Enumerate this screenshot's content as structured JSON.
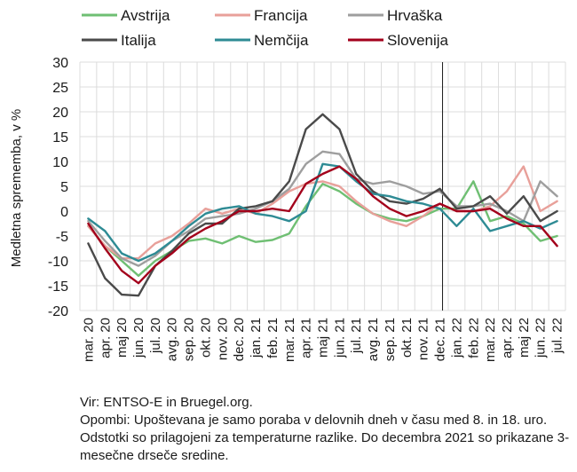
{
  "chart_data": {
    "type": "line",
    "ylabel": "Medletna sprememba, v %",
    "ylim": [
      -20,
      30
    ],
    "yticks": [
      30,
      25,
      20,
      15,
      10,
      5,
      0,
      -5,
      -10,
      -15,
      -20
    ],
    "categories": [
      "mar. 20",
      "apr. 20",
      "maj 20",
      "jun. 20",
      "jul. 20",
      "avg. 20",
      "sep. 20",
      "okt. 20",
      "nov. 20",
      "dec. 20",
      "jan. 21",
      "feb. 21",
      "mar. 21",
      "apr. 21",
      "maj 21",
      "jun. 21",
      "jul. 21",
      "avg. 21",
      "sep. 21",
      "okt. 21",
      "nov. 21",
      "dec. 21",
      "jan. 22",
      "feb. 22",
      "mar. 22",
      "apr. 22",
      "maj 22",
      "jun. 22",
      "jul. 22"
    ],
    "vline_after": "dec. 21",
    "legend_position": "top",
    "series": [
      {
        "name": "Avstrija",
        "color": "#6fbf73",
        "values": [
          -3,
          -7,
          -10,
          -13,
          -10,
          -8,
          -6,
          -5.5,
          -6.5,
          -5,
          -6.2,
          -5.8,
          -4.5,
          1,
          5.5,
          4,
          1.5,
          -0.5,
          -1.5,
          -2,
          -1,
          0.5,
          0.5,
          6,
          -2,
          -1,
          -2.5,
          -6,
          -5
        ]
      },
      {
        "name": "Francija",
        "color": "#e8a09a",
        "values": [
          -3,
          -7,
          -9.5,
          -9.5,
          -6.5,
          -5,
          -2.5,
          0.5,
          -0.5,
          0.5,
          -0.5,
          1.5,
          4,
          5.5,
          6,
          5,
          2,
          -0.5,
          -2,
          -3,
          -1,
          1.5,
          0,
          0,
          1,
          4,
          9,
          0,
          2
        ]
      },
      {
        "name": "Hrvaška",
        "color": "#9e9e9e",
        "values": [
          -2,
          -6,
          -9.5,
          -11,
          -9,
          -6,
          -4,
          -1.5,
          -1,
          -0.5,
          0.5,
          2,
          4.5,
          9.5,
          12,
          11.5,
          6.5,
          5.5,
          6,
          5,
          3.5,
          4,
          1,
          1,
          1.5,
          0,
          -2,
          6,
          3
        ]
      },
      {
        "name": "Italija",
        "color": "#4a4a4a",
        "values": [
          -6.5,
          -13.5,
          -16.8,
          -17,
          -11,
          -8,
          -4.5,
          -2.5,
          -2.5,
          0.5,
          1,
          2,
          6,
          16.5,
          19.5,
          16.5,
          7.5,
          4,
          2,
          1.5,
          2.5,
          4.5,
          0.5,
          1,
          3,
          -0.5,
          3,
          -2,
          0
        ]
      },
      {
        "name": "Nemčija",
        "color": "#2e8b94",
        "values": [
          -1.5,
          -4,
          -8.5,
          -10,
          -8.5,
          -6,
          -3,
          -0.5,
          0.5,
          1,
          -0.5,
          -1,
          -2,
          0,
          9.5,
          9,
          6,
          3.5,
          3,
          2,
          1.5,
          0.5,
          -3,
          0.5,
          -4,
          -3,
          -2,
          -3.5,
          -2
        ]
      },
      {
        "name": "Slovenija",
        "color": "#a3001b",
        "values": [
          -2.5,
          -7.5,
          -12,
          -14.5,
          -11,
          -8.5,
          -5.5,
          -3.5,
          -2,
          0,
          0,
          0.5,
          0,
          5.5,
          7.5,
          9,
          6.5,
          3,
          0.5,
          -1,
          0,
          1.5,
          0,
          0,
          0.5,
          -1.5,
          -3,
          -3,
          -7
        ]
      }
    ]
  },
  "source_lines": [
    "Vir: ENTSO-E in Bruegel.org.",
    "Opombi: Upoštevana je samo poraba v delovnih dneh v času med 8. in 18. uro. Odstotki so prilagojeni za temperaturne razlike. Do decembra 2021 so prikazane 3-mesečne drseče sredine."
  ]
}
